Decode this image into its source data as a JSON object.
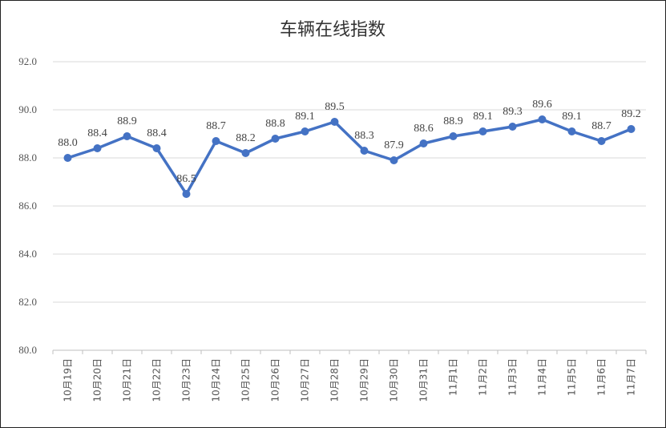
{
  "chart_data": {
    "type": "line",
    "title": "车辆在线指数",
    "xlabel": "",
    "ylabel": "",
    "ylim": [
      80,
      92
    ],
    "yticks": [
      "80.0",
      "82.0",
      "84.0",
      "86.0",
      "88.0",
      "90.0",
      "92.0"
    ],
    "grid": true,
    "legend": "none",
    "line_color": "#4472C4",
    "categories": [
      "10月19日",
      "10月20日",
      "10月21日",
      "10月22日",
      "10月23日",
      "10月24日",
      "10月25日",
      "10月26日",
      "10月27日",
      "10月28日",
      "10月29日",
      "10月30日",
      "10月31日",
      "11月1日",
      "11月2日",
      "11月3日",
      "11月4日",
      "11月5日",
      "11月6日",
      "11月7日"
    ],
    "series": [
      {
        "values": [
          88.0,
          88.4,
          88.9,
          88.4,
          86.5,
          88.7,
          88.2,
          88.8,
          89.1,
          89.5,
          88.3,
          87.9,
          88.6,
          88.9,
          89.1,
          89.3,
          89.6,
          89.1,
          88.7,
          89.2
        ],
        "labels": [
          "88.0",
          "88.4",
          "88.9",
          "88.4",
          "86.5",
          "88.7",
          "88.2",
          "88.8",
          "89.1",
          "89.5",
          "88.3",
          "87.9",
          "88.6",
          "88.9",
          "89.1",
          "89.3",
          "89.6",
          "89.1",
          "88.7",
          "89.2"
        ]
      }
    ]
  }
}
